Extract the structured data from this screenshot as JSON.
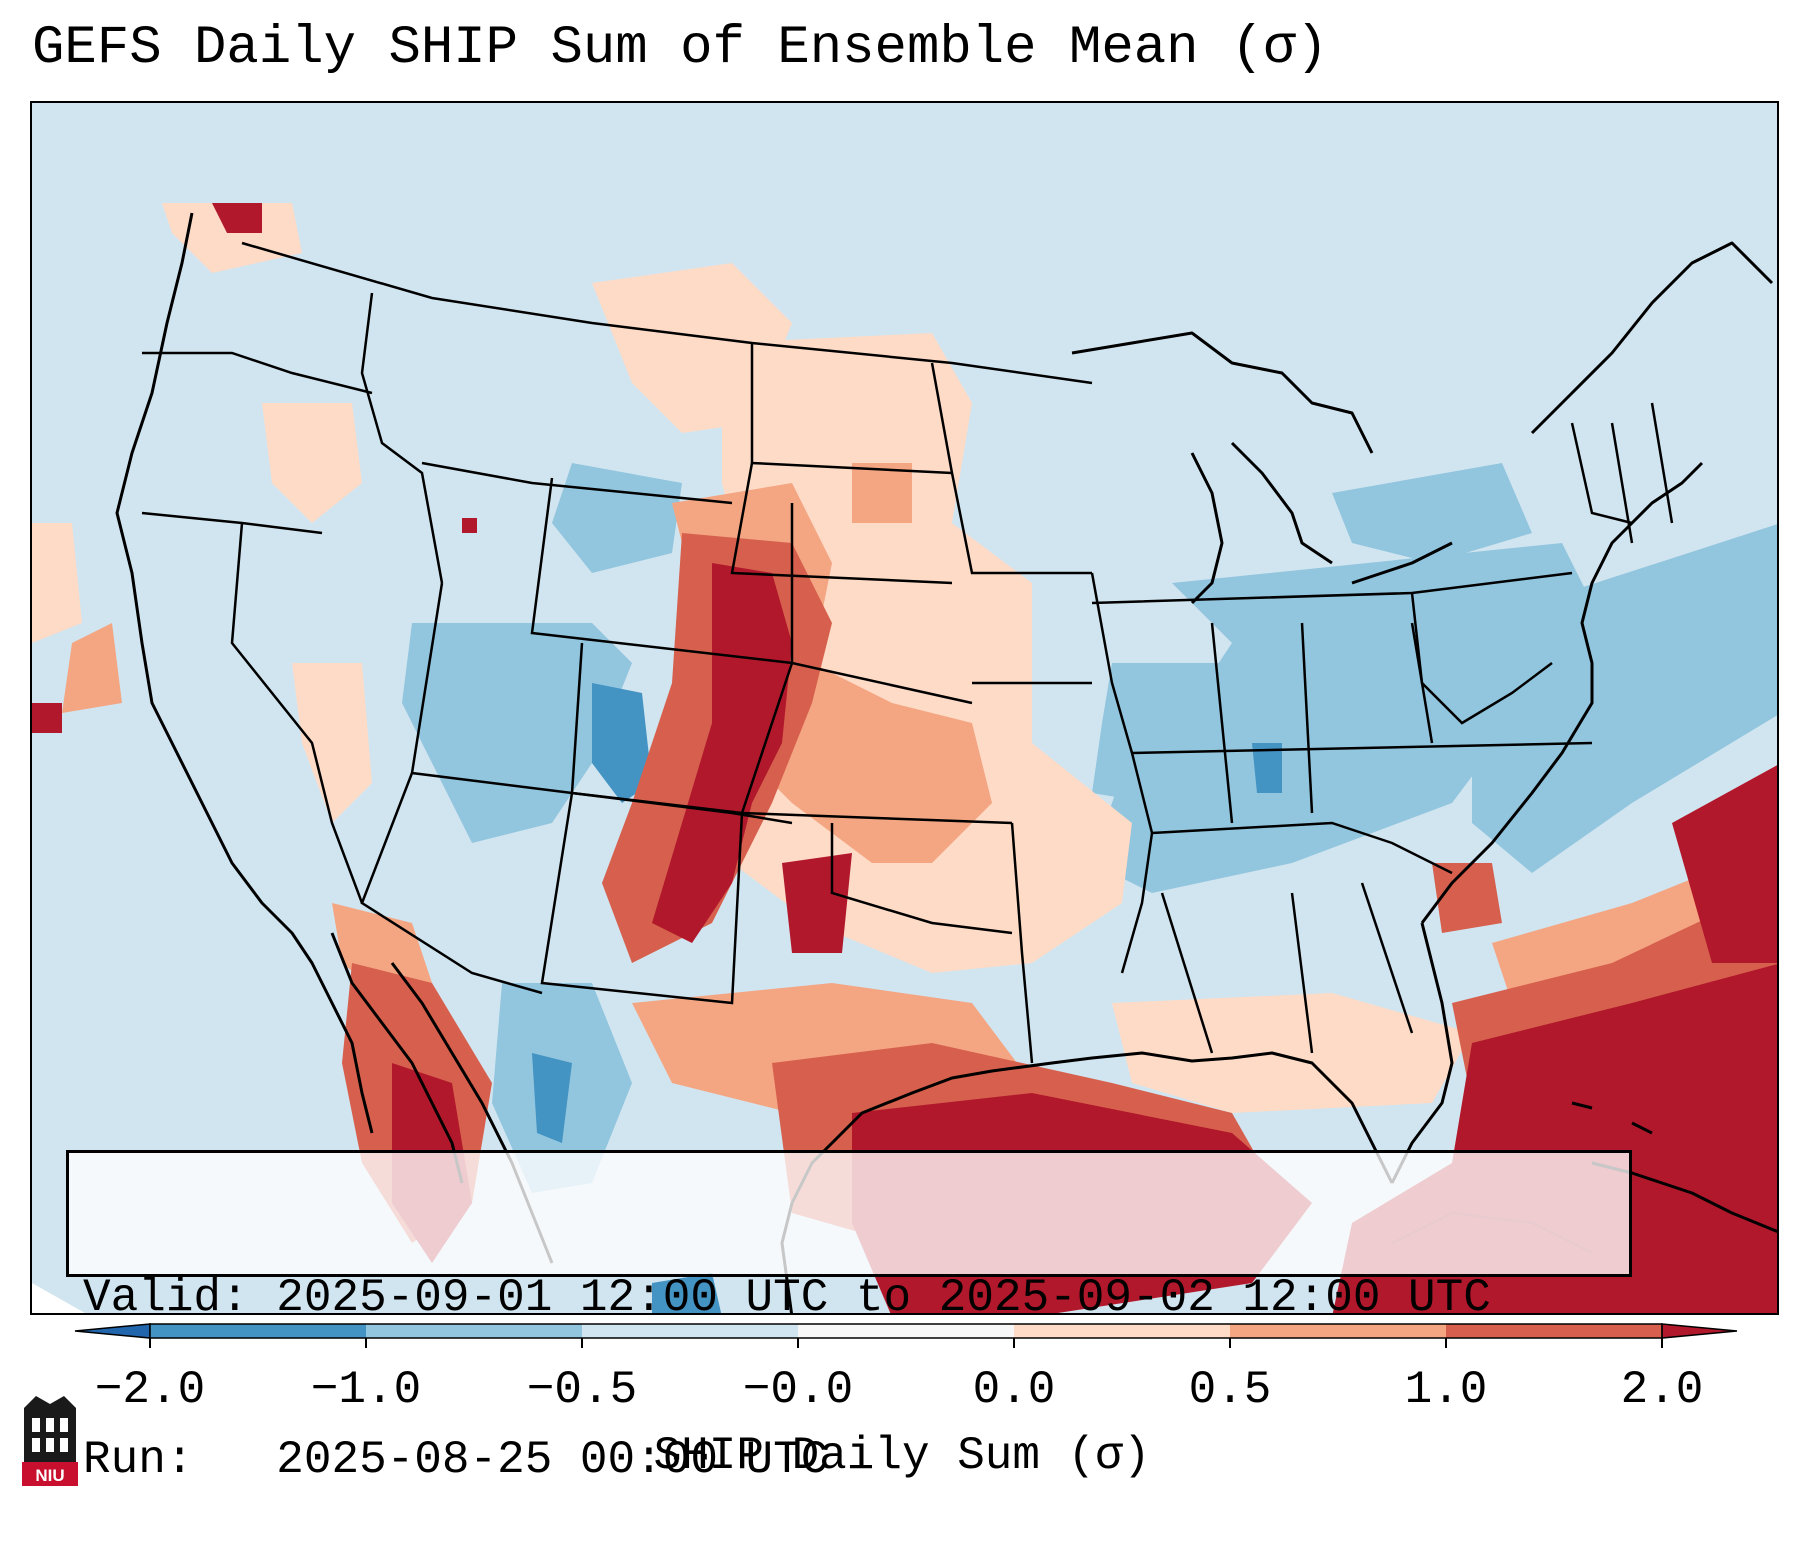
{
  "title": "GEFS Daily SHIP Sum of Ensemble Mean (σ)",
  "info": {
    "valid_label": "Valid:",
    "valid_value": "2025-09-01 12:00 UTC to 2025-09-02 12:00 UTC",
    "run_label": "Run:",
    "run_value": "2025-08-25 00:00 UTC"
  },
  "colorbar": {
    "label": "SHIP Daily Sum (σ)",
    "ticks": [
      "−2.0",
      "−1.0",
      "−0.5",
      "−0.0",
      "0.0",
      "0.5",
      "1.0",
      "2.0"
    ],
    "colors": [
      "#2166ac",
      "#4393c3",
      "#92c5de",
      "#d1e5f0",
      "#f7f7f7",
      "#fddbc7",
      "#f4a582",
      "#d6604d",
      "#b2182b"
    ]
  },
  "map": {
    "field": "SHIP daily sum standardized anomaly",
    "region": "Contiguous United States, northern Mexico, Gulf of Mexico",
    "high_regions": [
      "Eastern Colorado / New Mexico",
      "Texas / Gulf of Mexico",
      "Western Atlantic",
      "Northwest Mexico"
    ],
    "low_regions": [
      "Ohio Valley",
      "Mid-Atlantic",
      "Great Basin",
      "Northeast"
    ]
  },
  "logo": {
    "text": "NIU",
    "color": "#c8102e"
  }
}
